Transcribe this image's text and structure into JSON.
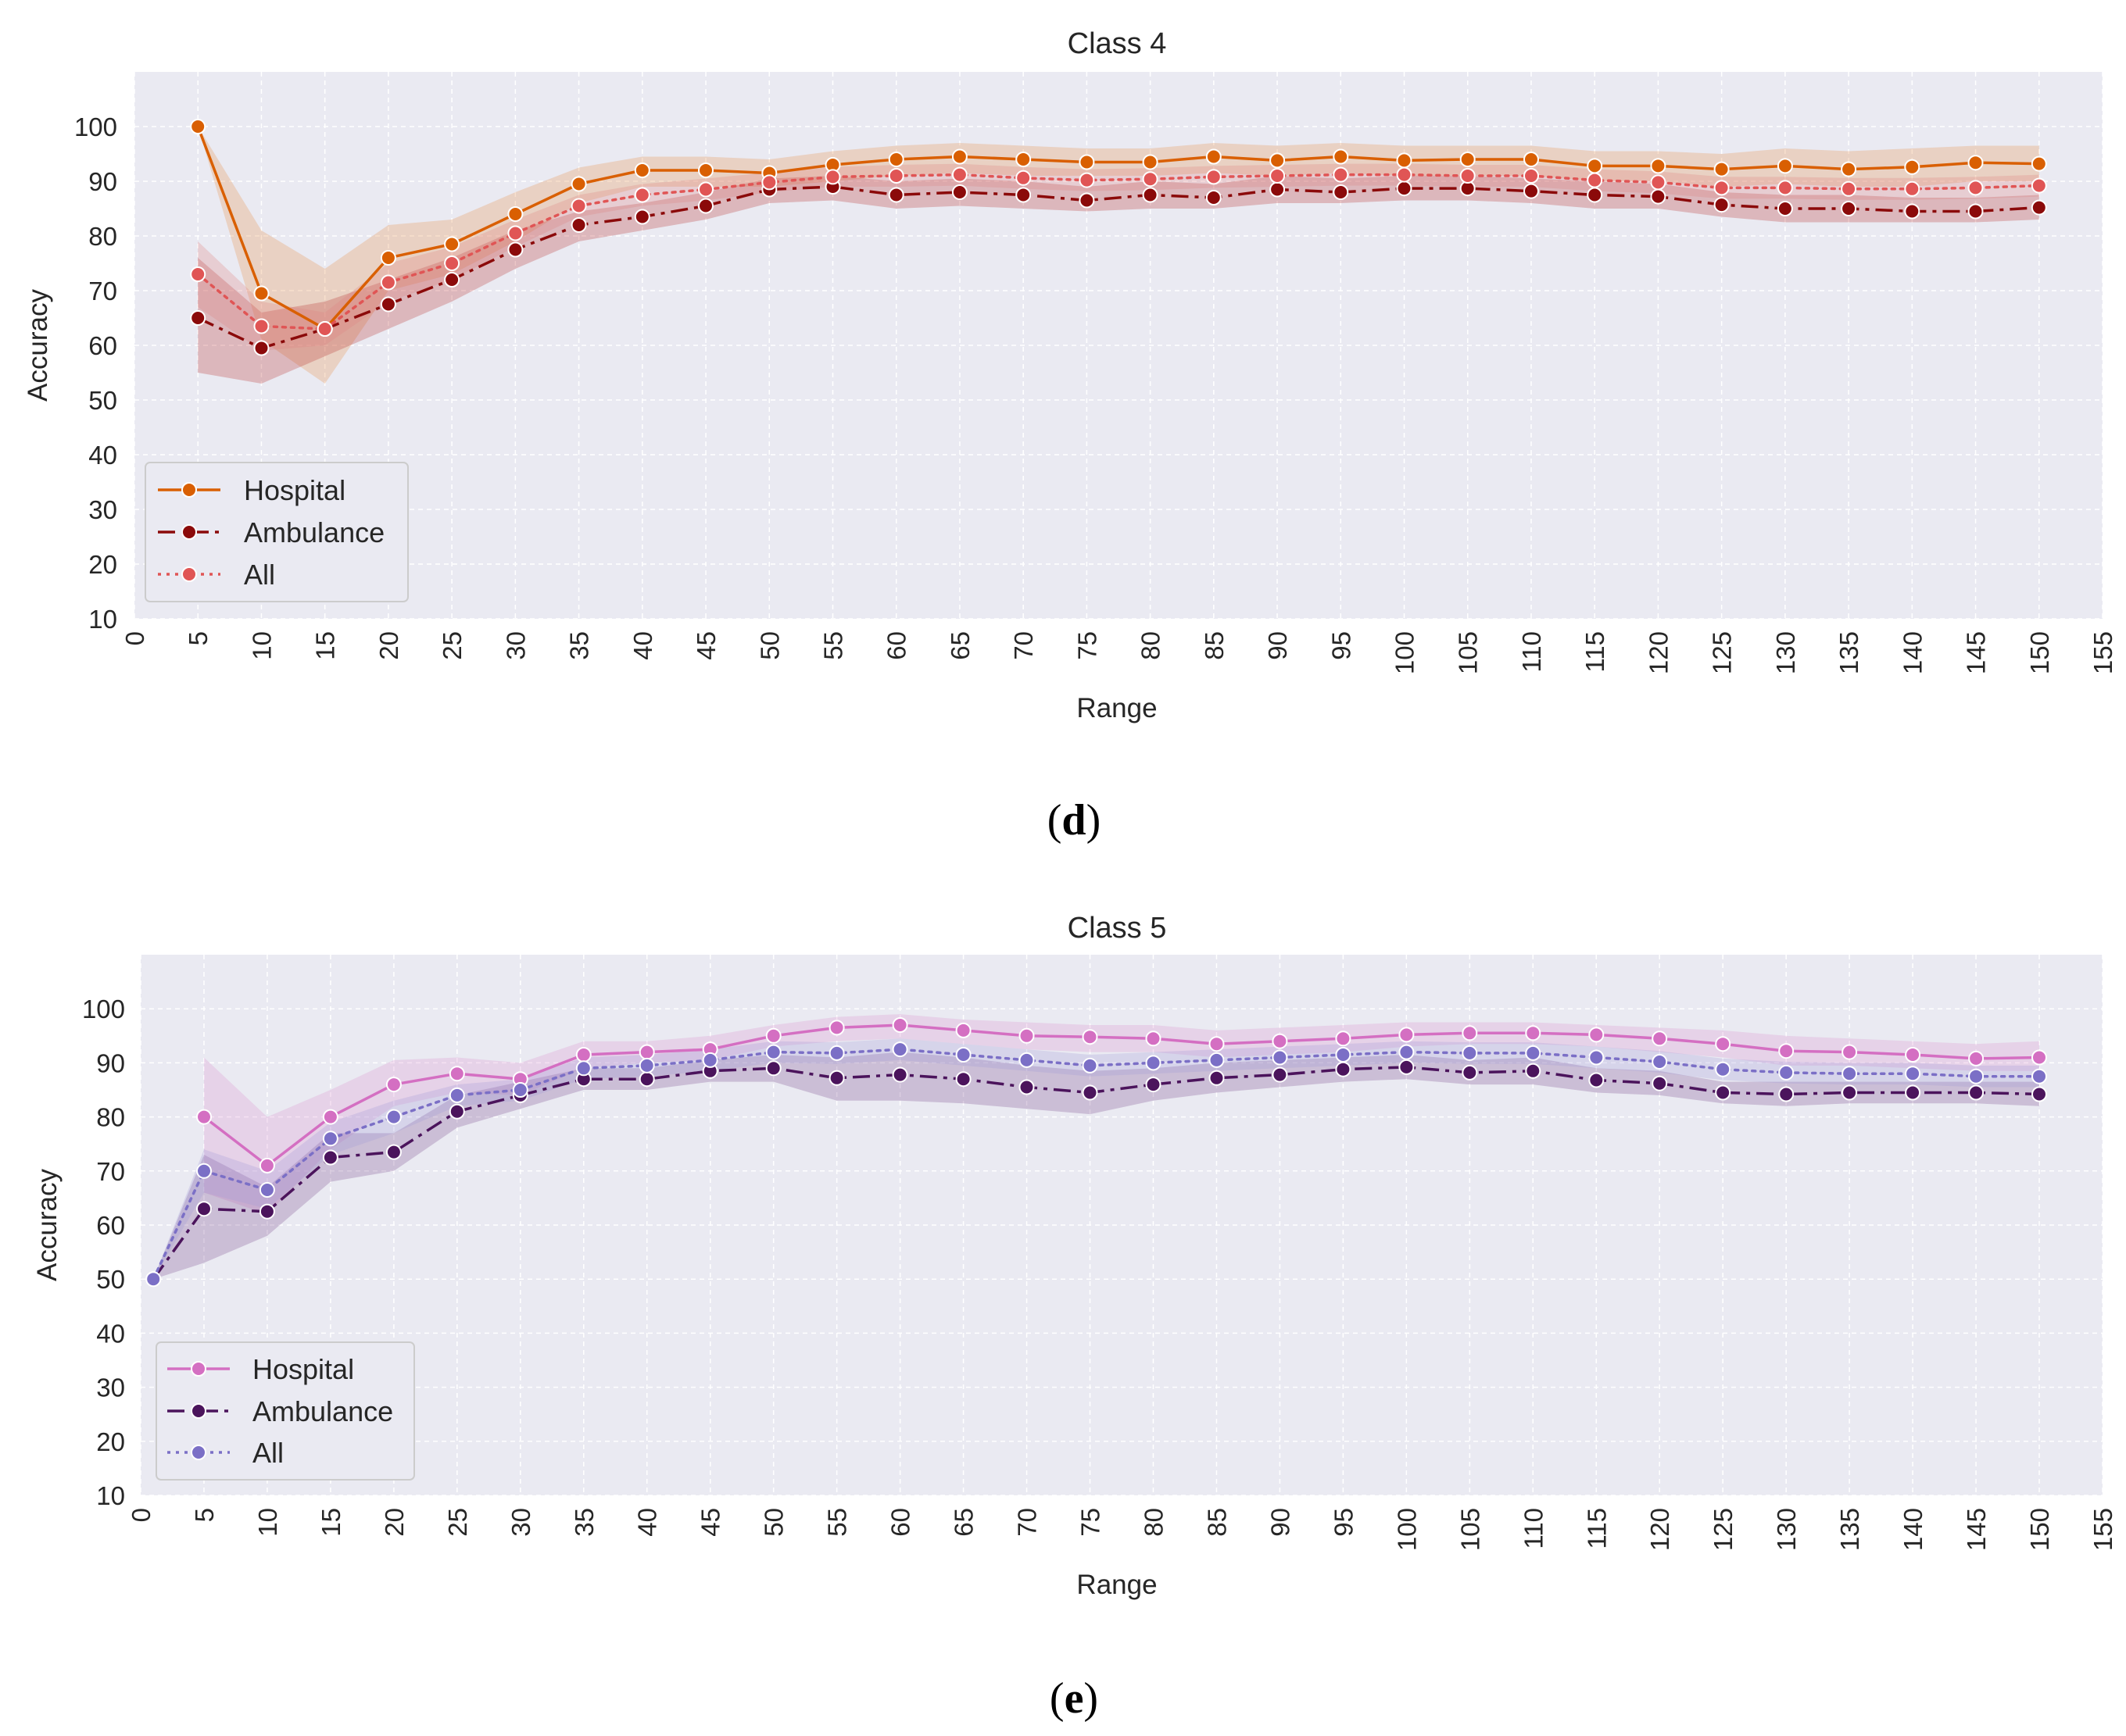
{
  "chart_data": [
    {
      "type": "line",
      "panel_label": "(d)",
      "panel_letter": "d",
      "title": "Class 4",
      "xlabel": "Range",
      "ylabel": "Accuracy",
      "xlim": [
        0,
        155
      ],
      "ylim": [
        10,
        110
      ],
      "xticks": [
        0,
        5,
        10,
        15,
        20,
        25,
        30,
        35,
        40,
        45,
        50,
        55,
        60,
        65,
        70,
        75,
        80,
        85,
        90,
        95,
        100,
        105,
        110,
        115,
        120,
        125,
        130,
        135,
        140,
        145,
        150,
        155
      ],
      "yticks": [
        10,
        20,
        30,
        40,
        50,
        60,
        70,
        80,
        90,
        100
      ],
      "grid": true,
      "legend_position": "lower-left",
      "series": [
        {
          "name": "Hospital",
          "color": "#d95f02",
          "band_color": "#e6904a",
          "dash": "solid",
          "x": [
            5,
            10,
            15,
            20,
            25,
            30,
            35,
            40,
            45,
            50,
            55,
            60,
            65,
            70,
            75,
            80,
            85,
            90,
            95,
            100,
            105,
            110,
            115,
            120,
            125,
            130,
            135,
            140,
            145,
            150
          ],
          "values": [
            100,
            69.5,
            63,
            76,
            78.5,
            84,
            89.5,
            92,
            92,
            91.5,
            93,
            94,
            94.5,
            94,
            93.5,
            93.5,
            94.5,
            93.8,
            94.5,
            93.8,
            94,
            94,
            92.8,
            92.8,
            92.2,
            92.8,
            92.2,
            92.6,
            93.4,
            93.2
          ],
          "lower": [
            100,
            61,
            53,
            70,
            73,
            79,
            86,
            89,
            89,
            89,
            90,
            91,
            91.5,
            91,
            91,
            91,
            91.5,
            91,
            91.5,
            91,
            91,
            91,
            90,
            90,
            89,
            89.5,
            89,
            89,
            90,
            90
          ],
          "upper": [
            100,
            81,
            74,
            82,
            83,
            88,
            92.5,
            94.5,
            94.5,
            94,
            95.5,
            96.5,
            97,
            96.5,
            96,
            96,
            97,
            96.5,
            97,
            96.5,
            96.5,
            96.5,
            95.5,
            95.5,
            95,
            96,
            95.5,
            96,
            96.5,
            96.5
          ]
        },
        {
          "name": "Ambulance",
          "color": "#8b0a0a",
          "band_color": "#b83434",
          "dash": "dashdot",
          "x": [
            5,
            10,
            15,
            20,
            25,
            30,
            35,
            40,
            45,
            50,
            55,
            60,
            65,
            70,
            75,
            80,
            85,
            90,
            95,
            100,
            105,
            110,
            115,
            120,
            125,
            130,
            135,
            140,
            145,
            150
          ],
          "values": [
            65,
            59.5,
            63,
            67.5,
            72,
            77.5,
            82,
            83.5,
            85.5,
            88.5,
            89,
            87.5,
            88,
            87.5,
            86.5,
            87.5,
            87,
            88.5,
            88,
            88.7,
            88.7,
            88.2,
            87.5,
            87.2,
            85.7,
            85,
            85,
            84.5,
            84.5,
            85.2
          ],
          "lower": [
            55,
            53,
            58,
            63,
            68,
            74,
            79,
            81,
            83,
            86,
            86.5,
            85,
            85.5,
            85,
            84.5,
            85,
            85,
            86,
            86,
            86.5,
            86.5,
            86,
            85,
            85,
            83.5,
            82.5,
            82.5,
            82.5,
            82.5,
            83
          ],
          "upper": [
            76,
            66,
            68,
            72,
            76,
            81,
            84.5,
            86,
            88,
            90.5,
            91,
            90,
            90.5,
            90,
            89,
            90,
            89.5,
            91,
            90.5,
            91,
            91,
            90.5,
            90,
            89.5,
            88,
            87.5,
            87.5,
            87,
            87,
            87.5
          ]
        },
        {
          "name": "All",
          "color": "#e05555",
          "band_color": "#e08080",
          "dash": "dotted",
          "x": [
            5,
            10,
            15,
            20,
            25,
            30,
            35,
            40,
            45,
            50,
            55,
            60,
            65,
            70,
            75,
            80,
            85,
            90,
            95,
            100,
            105,
            110,
            115,
            120,
            125,
            130,
            135,
            140,
            145,
            150
          ],
          "values": [
            73,
            63.5,
            63,
            71.5,
            75,
            80.5,
            85.5,
            87.5,
            88.5,
            89.8,
            90.8,
            91,
            91.2,
            90.6,
            90.2,
            90.4,
            90.8,
            91,
            91.2,
            91.2,
            91,
            91,
            90.2,
            89.8,
            88.8,
            88.8,
            88.6,
            88.6,
            88.8,
            89.2
          ],
          "lower": [
            67,
            59,
            60,
            68,
            72,
            78,
            83.5,
            85.5,
            86.5,
            88,
            89,
            89,
            89.2,
            88.6,
            88.2,
            88.4,
            88.8,
            89,
            89.2,
            89.2,
            89,
            89,
            88.2,
            87.8,
            86.8,
            86.8,
            86.6,
            86.6,
            86.8,
            87.2
          ],
          "upper": [
            79,
            68,
            66,
            75,
            78,
            83,
            87.5,
            89.5,
            90.5,
            91.6,
            92.6,
            93,
            93.2,
            92.6,
            92.2,
            92.4,
            92.8,
            93,
            93.2,
            93.2,
            93,
            93,
            92.2,
            91.8,
            90.8,
            90.8,
            90.6,
            90.6,
            90.8,
            91.2
          ]
        }
      ]
    },
    {
      "type": "line",
      "panel_label": "(e)",
      "panel_letter": "e",
      "title": "Class 5",
      "xlabel": "Range",
      "ylabel": "Accuracy",
      "xlim": [
        0,
        155
      ],
      "ylim": [
        10,
        110
      ],
      "xticks": [
        0,
        5,
        10,
        15,
        20,
        25,
        30,
        35,
        40,
        45,
        50,
        55,
        60,
        65,
        70,
        75,
        80,
        85,
        90,
        95,
        100,
        105,
        110,
        115,
        120,
        125,
        130,
        135,
        140,
        145,
        150,
        155
      ],
      "yticks": [
        10,
        20,
        30,
        40,
        50,
        60,
        70,
        80,
        90,
        100
      ],
      "grid": true,
      "legend_position": "lower-left",
      "series": [
        {
          "name": "Hospital",
          "color": "#d46fc2",
          "band_color": "#dc95cf",
          "dash": "solid",
          "x": [
            5,
            10,
            15,
            20,
            25,
            30,
            35,
            40,
            45,
            50,
            55,
            60,
            65,
            70,
            75,
            80,
            85,
            90,
            95,
            100,
            105,
            110,
            115,
            120,
            125,
            130,
            135,
            140,
            145,
            150
          ],
          "values": [
            80,
            71,
            80,
            86,
            88,
            87,
            91.5,
            92,
            92.5,
            95,
            96.5,
            97,
            96,
            95,
            94.8,
            94.5,
            93.5,
            94,
            94.5,
            95.2,
            95.5,
            95.5,
            95.2,
            94.5,
            93.5,
            92.2,
            92,
            91.5,
            90.8,
            91
          ],
          "lower": [
            66,
            62,
            74,
            82,
            84.5,
            84,
            89,
            90,
            90.5,
            93,
            94,
            94.5,
            93.5,
            92.5,
            92,
            92,
            91,
            91.5,
            92,
            93,
            93.5,
            93.5,
            93,
            92,
            91,
            89.5,
            89.5,
            89,
            88.5,
            88.5
          ],
          "upper": [
            91,
            80,
            85,
            90.5,
            91,
            90,
            94,
            94,
            95,
            97,
            98.5,
            99,
            98,
            97.5,
            97,
            97,
            96,
            96.5,
            97,
            97.5,
            97.5,
            97.5,
            97,
            96.5,
            96,
            95,
            94.5,
            94,
            93.5,
            94
          ]
        },
        {
          "name": "Ambulance",
          "color": "#4b145c",
          "band_color": "#7a4a8e",
          "dash": "dashdot",
          "x": [
            1,
            5,
            10,
            15,
            20,
            25,
            30,
            35,
            40,
            45,
            50,
            55,
            60,
            65,
            70,
            75,
            80,
            85,
            90,
            95,
            100,
            105,
            110,
            115,
            120,
            125,
            130,
            135,
            140,
            145,
            150
          ],
          "values": [
            50,
            63,
            62.5,
            72.5,
            73.5,
            81,
            84,
            87,
            87,
            88.5,
            89,
            87.2,
            87.8,
            87,
            85.5,
            84.5,
            86,
            87.2,
            87.8,
            88.8,
            89.2,
            88.2,
            88.5,
            86.8,
            86.2,
            84.5,
            84.2,
            84.5,
            84.5,
            84.5,
            84.2
          ],
          "lower": [
            50,
            53,
            58,
            68,
            70,
            78,
            81.5,
            85,
            85,
            86.5,
            86.5,
            83,
            83,
            82.5,
            81.5,
            80.5,
            83,
            84.5,
            85.5,
            86.5,
            87,
            86,
            86,
            84.5,
            84,
            82.5,
            82,
            82.5,
            82.5,
            82.5,
            82
          ],
          "upper": [
            50,
            73,
            67,
            77,
            77,
            84,
            86.5,
            89,
            89,
            90.5,
            91.5,
            91,
            92,
            91,
            89.5,
            88.5,
            89,
            90,
            90.5,
            91,
            91.5,
            90.5,
            91,
            89,
            88.5,
            86.5,
            86.5,
            86.5,
            86.5,
            86.5,
            86.5
          ]
        },
        {
          "name": "All",
          "color": "#7b6fc6",
          "band_color": "#a199d8",
          "dash": "dotted",
          "x": [
            1,
            5,
            10,
            15,
            20,
            25,
            30,
            35,
            40,
            45,
            50,
            55,
            60,
            65,
            70,
            75,
            80,
            85,
            90,
            95,
            100,
            105,
            110,
            115,
            120,
            125,
            130,
            135,
            140,
            145,
            150
          ],
          "values": [
            50,
            70,
            66.5,
            76,
            80,
            84,
            85,
            89,
            89.5,
            90.5,
            92,
            91.8,
            92.5,
            91.5,
            90.5,
            89.5,
            90,
            90.5,
            91,
            91.5,
            92,
            91.8,
            91.8,
            91,
            90.2,
            88.8,
            88.2,
            88,
            88,
            87.5,
            87.5
          ],
          "lower": [
            50,
            66,
            63,
            73,
            77,
            82,
            83,
            87,
            87.5,
            88.5,
            90,
            89.8,
            90.5,
            89.5,
            88.5,
            87.5,
            88,
            88.5,
            89,
            89.5,
            90,
            89.8,
            89.8,
            89,
            88.2,
            86.8,
            86.2,
            86,
            86,
            85.5,
            85.5
          ],
          "upper": [
            50,
            74,
            70,
            79,
            83,
            86,
            87,
            91,
            91.5,
            92.5,
            94,
            93.8,
            94.5,
            93.5,
            92.5,
            91.5,
            92,
            92.5,
            93,
            93.5,
            94,
            93.8,
            93.8,
            93,
            92.2,
            90.8,
            90.2,
            90,
            90,
            89.5,
            89.5
          ]
        }
      ]
    }
  ]
}
